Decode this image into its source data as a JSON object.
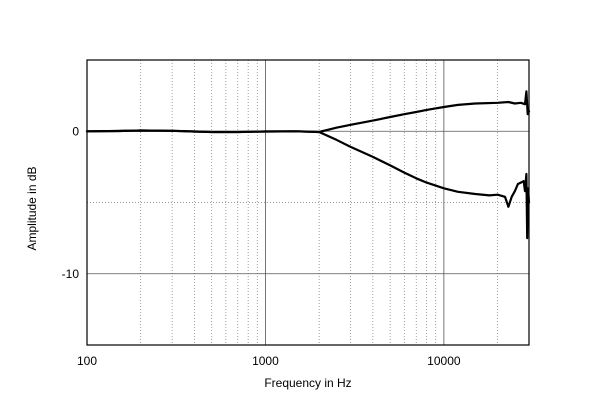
{
  "chart_data": {
    "type": "line",
    "title": "",
    "xlabel": "Frequency  in Hz",
    "ylabel": "Amplitude in dB",
    "x_scale": "log",
    "xlim": [
      100,
      30000
    ],
    "ylim": [
      -15,
      5
    ],
    "x_ticks": [
      {
        "value": 100,
        "label": "100"
      },
      {
        "value": 1000,
        "label": "1000"
      },
      {
        "value": 10000,
        "label": "10000"
      }
    ],
    "y_ticks": [
      {
        "value": 0,
        "label": "0"
      },
      {
        "value": -10,
        "label": "-10"
      }
    ],
    "grid": true,
    "legend": "none",
    "series": [
      {
        "color": "#000000",
        "points": [
          [
            100,
            0
          ],
          [
            150,
            0.02
          ],
          [
            200,
            0.05
          ],
          [
            300,
            0.03
          ],
          [
            400,
            -0.02
          ],
          [
            500,
            -0.05
          ],
          [
            700,
            -0.05
          ],
          [
            1000,
            -0.02
          ],
          [
            1500,
            0
          ],
          [
            2000,
            -0.05
          ],
          [
            2500,
            0.25
          ],
          [
            3000,
            0.45
          ],
          [
            4000,
            0.75
          ],
          [
            5000,
            1.0
          ],
          [
            6000,
            1.2
          ],
          [
            7000,
            1.35
          ],
          [
            8000,
            1.5
          ],
          [
            10000,
            1.7
          ],
          [
            12000,
            1.85
          ],
          [
            15000,
            1.95
          ],
          [
            20000,
            2.0
          ],
          [
            23000,
            2.05
          ],
          [
            25000,
            1.95
          ],
          [
            27000,
            2.0
          ],
          [
            28500,
            1.9
          ],
          [
            29000,
            2.8
          ],
          [
            29500,
            1.2
          ],
          [
            30000,
            1.4
          ]
        ]
      },
      {
        "color": "#000000",
        "points": [
          [
            100,
            0
          ],
          [
            150,
            0.02
          ],
          [
            200,
            0.05
          ],
          [
            300,
            0.03
          ],
          [
            400,
            -0.02
          ],
          [
            500,
            -0.05
          ],
          [
            700,
            -0.05
          ],
          [
            1000,
            -0.02
          ],
          [
            1500,
            0
          ],
          [
            2000,
            -0.05
          ],
          [
            2500,
            -0.6
          ],
          [
            3000,
            -1.1
          ],
          [
            4000,
            -1.8
          ],
          [
            5000,
            -2.4
          ],
          [
            6000,
            -2.9
          ],
          [
            7000,
            -3.3
          ],
          [
            8000,
            -3.6
          ],
          [
            10000,
            -4.0
          ],
          [
            12000,
            -4.25
          ],
          [
            15000,
            -4.4
          ],
          [
            18000,
            -4.5
          ],
          [
            20000,
            -4.45
          ],
          [
            22000,
            -4.6
          ],
          [
            23000,
            -5.3
          ],
          [
            24000,
            -4.6
          ],
          [
            25000,
            -4.2
          ],
          [
            26000,
            -3.7
          ],
          [
            27000,
            -3.6
          ],
          [
            28000,
            -3.5
          ],
          [
            28500,
            -4.2
          ],
          [
            29000,
            -3.0
          ],
          [
            29300,
            -7.5
          ],
          [
            29600,
            -4.0
          ],
          [
            30000,
            -5.0
          ]
        ]
      }
    ]
  }
}
